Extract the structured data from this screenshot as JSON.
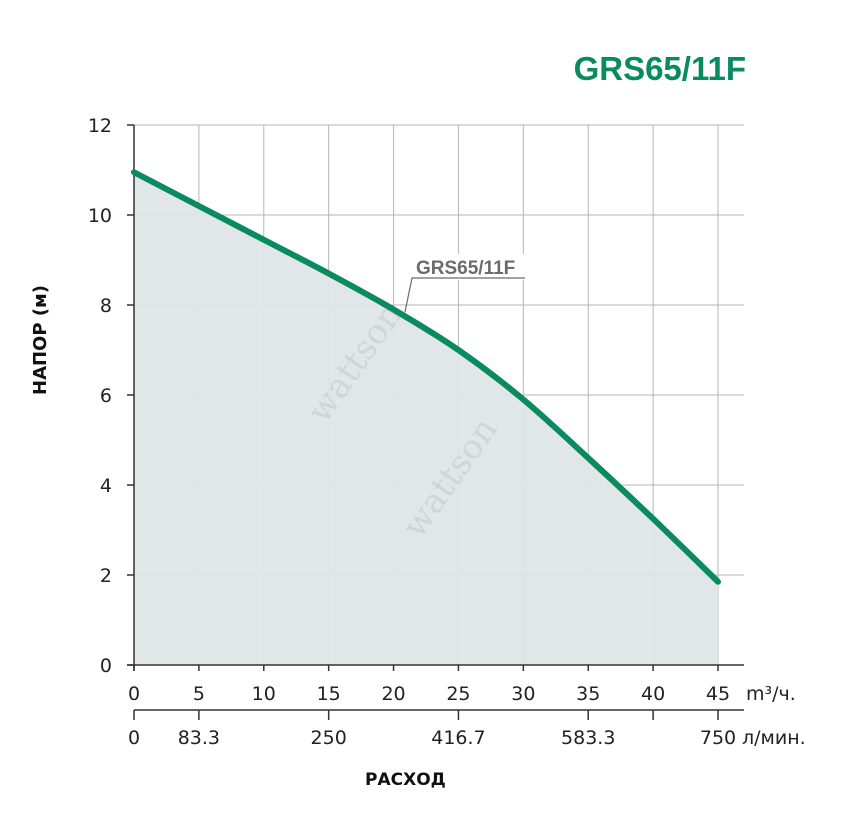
{
  "title": "GRS65/11F",
  "colors": {
    "accent": "#0a8a5f",
    "fill": "#dfe5e7",
    "grid": "#b6b6b6",
    "axis": "#333333"
  },
  "chart_data": {
    "type": "area",
    "title": "GRS65/11F",
    "ylabel": "НАПОР (м)",
    "xlabel": "РАСХОД",
    "grid": true,
    "xlim": [
      0,
      47
    ],
    "ylim": [
      0,
      12
    ],
    "y_ticks": [
      "0",
      "2",
      "4",
      "6",
      "8",
      "10",
      "12"
    ],
    "x_ticks": [
      "0",
      "5",
      "10",
      "15",
      "20",
      "25",
      "30",
      "35",
      "40",
      "45"
    ],
    "x_unit": "m³/ч.",
    "x2_ticks": [
      "0",
      "83.3",
      "250",
      "416.7",
      "583.3",
      "750"
    ],
    "x2_unit": "л/мин.",
    "series": [
      {
        "name": "GRS65/11F",
        "x": [
          0,
          5,
          10,
          15,
          20,
          25,
          30,
          35,
          40,
          45
        ],
        "y": [
          10.95,
          10.2,
          9.45,
          8.7,
          7.9,
          7.0,
          5.9,
          4.6,
          3.25,
          1.85
        ]
      }
    ],
    "annotation": "GRS65/11F"
  },
  "watermark": "wattson"
}
